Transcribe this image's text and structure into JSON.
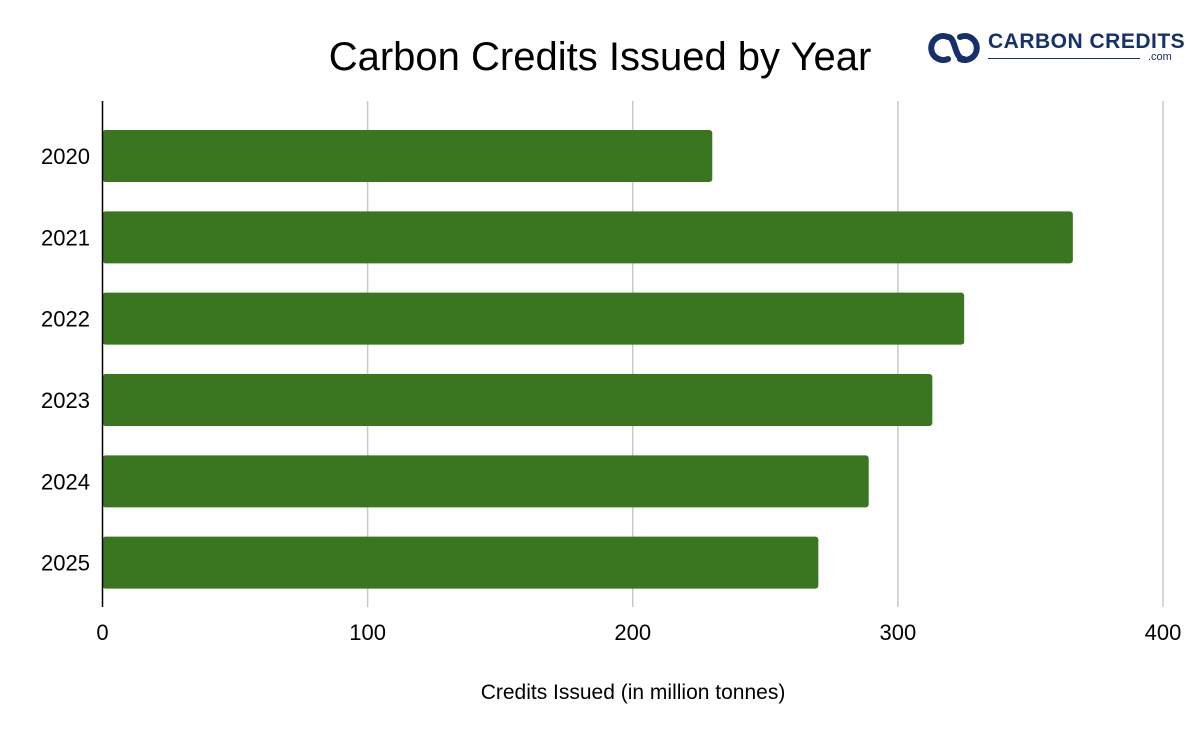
{
  "logo": {
    "icon": "carbon-credits-logo-icon",
    "name": "CARBON CREDITS",
    "suffix": ".com",
    "color": "#15306a"
  },
  "chart_data": {
    "type": "bar",
    "orientation": "horizontal",
    "title": "Carbon Credits Issued by Year",
    "xlabel": "Credits Issued (in million tonnes)",
    "ylabel": "",
    "categories": [
      "2020",
      "2021",
      "2022",
      "2023",
      "2024",
      "2025"
    ],
    "values": [
      230,
      366,
      325,
      313,
      289,
      270
    ],
    "xlim": [
      0,
      400
    ],
    "xticks": [
      "0",
      "100",
      "200",
      "300",
      "400"
    ],
    "grid": true,
    "legend": "none",
    "bar_color": "#3a761f",
    "grid_color": "#c8c8c8"
  }
}
